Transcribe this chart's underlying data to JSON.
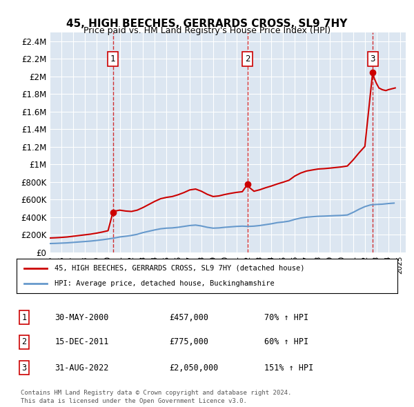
{
  "title": "45, HIGH BEECHES, GERRARDS CROSS, SL9 7HY",
  "subtitle": "Price paid vs. HM Land Registry's House Price Index (HPI)",
  "background_color": "#dce6f1",
  "plot_bg_color": "#dce6f1",
  "outer_bg_color": "#ffffff",
  "red_line_color": "#cc0000",
  "blue_line_color": "#6699cc",
  "dashed_color": "#cc0000",
  "ylim": [
    0,
    2500000
  ],
  "yticks": [
    0,
    200000,
    400000,
    600000,
    800000,
    1000000,
    1200000,
    1400000,
    1600000,
    1800000,
    2000000,
    2200000,
    2400000
  ],
  "ytick_labels": [
    "£0",
    "£200K",
    "£400K",
    "£600K",
    "£800K",
    "£1M",
    "£1.2M",
    "£1.4M",
    "£1.6M",
    "£1.8M",
    "£2M",
    "£2.2M",
    "£2.4M"
  ],
  "xlim_start": 1995.0,
  "xlim_end": 2025.5,
  "sale_dates": [
    2000.41,
    2011.96,
    2022.67
  ],
  "sale_prices": [
    457000,
    775000,
    2050000
  ],
  "sale_labels": [
    "1",
    "2",
    "3"
  ],
  "legend_red": "45, HIGH BEECHES, GERRARDS CROSS, SL9 7HY (detached house)",
  "legend_blue": "HPI: Average price, detached house, Buckinghamshire",
  "table_data": [
    [
      "1",
      "30-MAY-2000",
      "£457,000",
      "70% ↑ HPI"
    ],
    [
      "2",
      "15-DEC-2011",
      "£775,000",
      "60% ↑ HPI"
    ],
    [
      "3",
      "31-AUG-2022",
      "£2,050,000",
      "151% ↑ HPI"
    ]
  ],
  "footnote1": "Contains HM Land Registry data © Crown copyright and database right 2024.",
  "footnote2": "This data is licensed under the Open Government Licence v3.0.",
  "hpi_years": [
    1995,
    1995.5,
    1996,
    1996.5,
    1997,
    1997.5,
    1998,
    1998.5,
    1999,
    1999.5,
    2000,
    2000.5,
    2001,
    2001.5,
    2002,
    2002.5,
    2003,
    2003.5,
    2004,
    2004.5,
    2005,
    2005.5,
    2006,
    2006.5,
    2007,
    2007.5,
    2008,
    2008.5,
    2009,
    2009.5,
    2010,
    2010.5,
    2011,
    2011.5,
    2012,
    2012.5,
    2013,
    2013.5,
    2014,
    2014.5,
    2015,
    2015.5,
    2016,
    2016.5,
    2017,
    2017.5,
    2018,
    2018.5,
    2019,
    2019.5,
    2020,
    2020.5,
    2021,
    2021.5,
    2022,
    2022.5,
    2023,
    2023.5,
    2024,
    2024.5
  ],
  "hpi_values": [
    100000,
    102000,
    105000,
    108000,
    113000,
    118000,
    123000,
    128000,
    135000,
    143000,
    152000,
    162000,
    175000,
    183000,
    192000,
    205000,
    225000,
    240000,
    255000,
    268000,
    275000,
    278000,
    285000,
    295000,
    305000,
    310000,
    300000,
    285000,
    275000,
    278000,
    285000,
    290000,
    295000,
    298000,
    295000,
    298000,
    305000,
    315000,
    325000,
    338000,
    345000,
    355000,
    375000,
    390000,
    400000,
    405000,
    410000,
    412000,
    415000,
    418000,
    420000,
    425000,
    455000,
    490000,
    520000,
    540000,
    545000,
    548000,
    555000,
    560000
  ],
  "red_years": [
    1995,
    1995.5,
    1996,
    1996.5,
    1997,
    1997.5,
    1998,
    1998.5,
    1999,
    1999.5,
    2000,
    2000.42,
    2000.5,
    2001,
    2001.5,
    2002,
    2002.5,
    2003,
    2003.5,
    2004,
    2004.5,
    2005,
    2005.5,
    2006,
    2006.5,
    2007,
    2007.5,
    2008,
    2008.5,
    2009,
    2009.5,
    2010,
    2010.5,
    2011,
    2011.5,
    2011.96,
    2012,
    2012.5,
    2013,
    2013.5,
    2014,
    2014.5,
    2015,
    2015.5,
    2016,
    2016.5,
    2017,
    2017.5,
    2018,
    2018.5,
    2019,
    2019.5,
    2020,
    2020.5,
    2021,
    2021.5,
    2022,
    2022.67,
    2022.8,
    2023,
    2023.2,
    2023.5,
    2023.8,
    2024,
    2024.3,
    2024.6
  ],
  "red_values": [
    163000,
    166000,
    170000,
    175000,
    183000,
    191000,
    199000,
    207000,
    218000,
    231000,
    246000,
    457000,
    467000,
    480000,
    470000,
    465000,
    480000,
    510000,
    545000,
    580000,
    610000,
    625000,
    635000,
    655000,
    680000,
    710000,
    720000,
    695000,
    660000,
    635000,
    642000,
    658000,
    671000,
    682000,
    690000,
    775000,
    750000,
    695000,
    712000,
    735000,
    755000,
    778000,
    798000,
    820000,
    868000,
    902000,
    925000,
    937000,
    948000,
    952000,
    958000,
    965000,
    972000,
    982000,
    1052000,
    1132000,
    1205000,
    2050000,
    1980000,
    1920000,
    1870000,
    1850000,
    1840000,
    1850000,
    1860000,
    1870000
  ]
}
